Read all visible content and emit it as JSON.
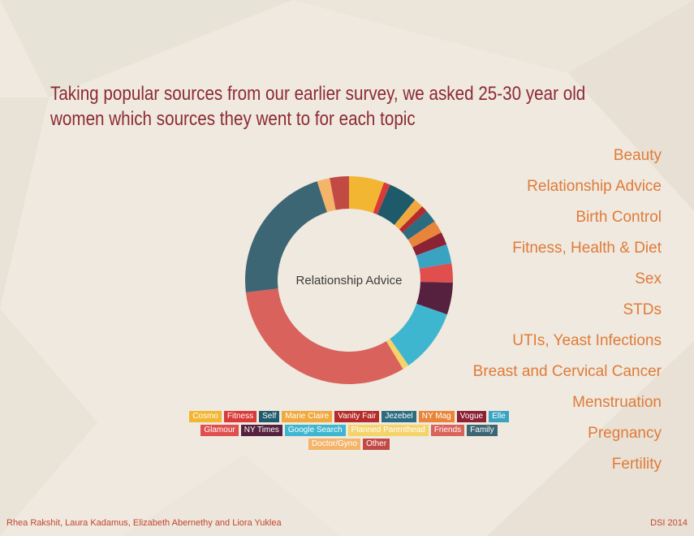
{
  "title_lines": [
    "Taking popular sources from our earlier survey, we asked 25-30 year old",
    "women which sources they went to for each topic"
  ],
  "topics": [
    "Beauty",
    "Relationship Advice",
    "Birth Control",
    "Fitness, Health & Diet",
    "Sex",
    "STDs",
    "UTIs, Yeast Infections",
    "Breast and Cervical Cancer",
    "Menstruation",
    "Pregnancy",
    "Fertility"
  ],
  "legend": [
    {
      "label": "Cosmo",
      "color": "#f2b632"
    },
    {
      "label": "Fitness",
      "color": "#d93b3b"
    },
    {
      "label": "Self",
      "color": "#1f5a6b"
    },
    {
      "label": "Marie Claire",
      "color": "#f0a93e"
    },
    {
      "label": "Vanity Fair",
      "color": "#b52a2a"
    },
    {
      "label": "Jezebel",
      "color": "#2b6c80"
    },
    {
      "label": "NY Mag",
      "color": "#e8853a"
    },
    {
      "label": "Vogue",
      "color": "#8c2234"
    },
    {
      "label": "Elle",
      "color": "#3ba3c2"
    },
    {
      "label": "Glamour",
      "color": "#e04e4e"
    },
    {
      "label": "NY Times",
      "color": "#55213f"
    },
    {
      "label": "Google Search",
      "color": "#3fb6cf"
    },
    {
      "label": "Planned Parenthead",
      "color": "#f5d36b"
    },
    {
      "label": "Friends",
      "color": "#d9625c"
    },
    {
      "label": "Family",
      "color": "#3c6674"
    },
    {
      "label": "Doctor/Gyno",
      "color": "#f4b46a"
    },
    {
      "label": "Other",
      "color": "#c24a45"
    }
  ],
  "chart_data": {
    "type": "pie",
    "donut": true,
    "center_label": "Relationship Advice",
    "categories": [
      "Cosmo",
      "Fitness",
      "Self",
      "Marie Claire",
      "Vanity Fair",
      "Jezebel",
      "NY Mag",
      "Vogue",
      "Elle",
      "Glamour",
      "NY Times",
      "Google Search",
      "Planned Parenthead",
      "Friends",
      "Family",
      "Doctor/Gyno",
      "Other"
    ],
    "values": [
      5.5,
      1,
      4.5,
      1.5,
      1,
      2,
      2,
      2,
      3,
      3,
      5,
      10,
      1,
      32,
      22,
      2,
      3
    ],
    "legend_position": "bottom"
  },
  "footer": {
    "authors": "Rhea Rakshit, Laura Kadamus, Elizabeth Abernethy and Liora Yuklea",
    "tag": "DSI 2014"
  }
}
